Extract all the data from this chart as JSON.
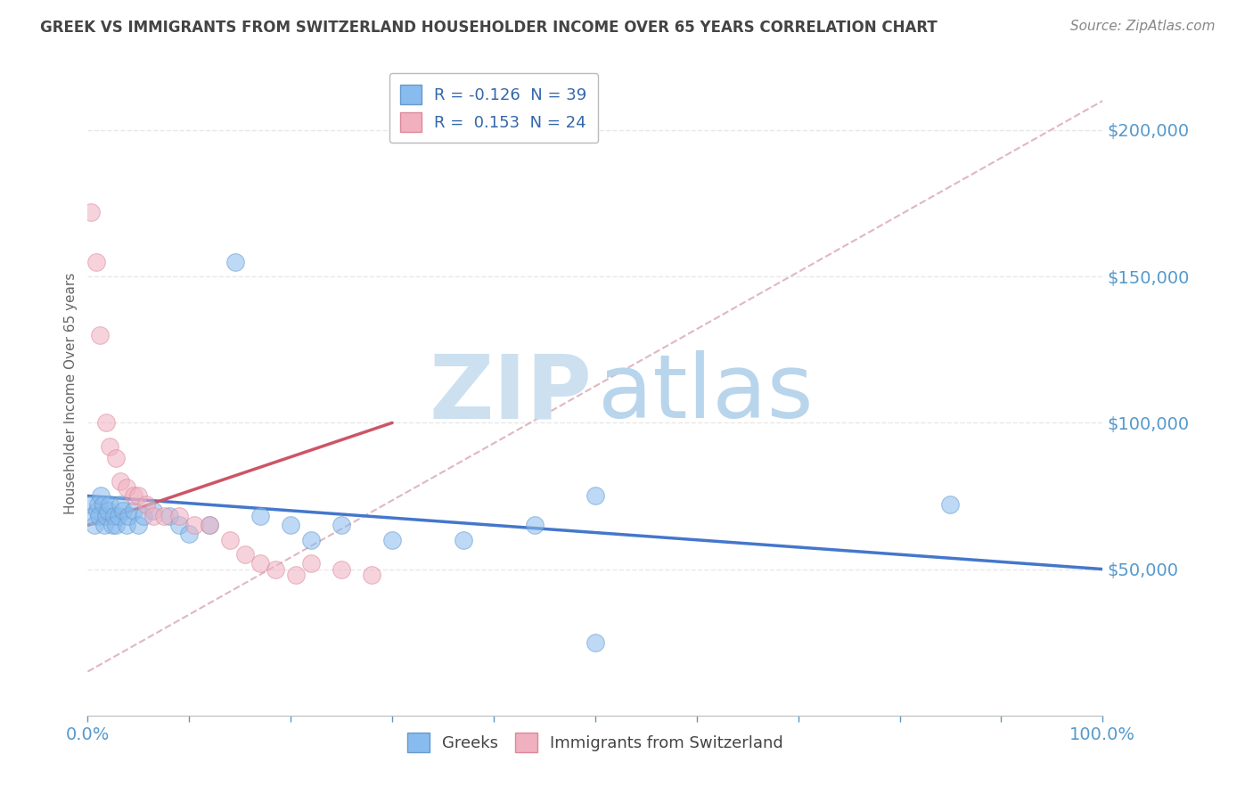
{
  "title": "GREEK VS IMMIGRANTS FROM SWITZERLAND HOUSEHOLDER INCOME OVER 65 YEARS CORRELATION CHART",
  "source": "Source: ZipAtlas.com",
  "ylabel": "Householder Income Over 65 years",
  "background_color": "#ffffff",
  "legend_entries": [
    {
      "label_r": "-0.126",
      "label_n": "39"
    },
    {
      "label_r": "0.153",
      "label_n": "24"
    }
  ],
  "legend_labels": [
    "Greeks",
    "Immigrants from Switzerland"
  ],
  "greeks_x": [
    0.3,
    0.5,
    0.7,
    0.9,
    1.0,
    1.1,
    1.3,
    1.5,
    1.6,
    1.8,
    2.0,
    2.2,
    2.4,
    2.6,
    2.8,
    3.0,
    3.2,
    3.5,
    3.8,
    4.0,
    4.5,
    5.0,
    5.5,
    6.5,
    8.0,
    9.0,
    10.0,
    12.0,
    14.5,
    17.0,
    20.0,
    22.0,
    25.0,
    30.0,
    37.0,
    44.0,
    50.0,
    85.0,
    50.0
  ],
  "greeks_y": [
    72000,
    68000,
    65000,
    70000,
    72000,
    68000,
    75000,
    72000,
    65000,
    68000,
    70000,
    72000,
    65000,
    68000,
    65000,
    68000,
    72000,
    70000,
    65000,
    68000,
    70000,
    65000,
    68000,
    70000,
    68000,
    65000,
    62000,
    65000,
    155000,
    68000,
    65000,
    60000,
    65000,
    60000,
    60000,
    65000,
    75000,
    72000,
    25000
  ],
  "swiss_x": [
    0.3,
    0.8,
    1.2,
    1.8,
    2.2,
    2.8,
    3.2,
    3.8,
    4.5,
    5.0,
    5.8,
    6.5,
    7.5,
    9.0,
    10.5,
    12.0,
    14.0,
    15.5,
    17.0,
    18.5,
    20.5,
    22.0,
    25.0,
    28.0
  ],
  "swiss_y": [
    172000,
    155000,
    130000,
    100000,
    92000,
    88000,
    80000,
    78000,
    75000,
    75000,
    72000,
    68000,
    68000,
    68000,
    65000,
    65000,
    60000,
    55000,
    52000,
    50000,
    48000,
    52000,
    50000,
    48000
  ],
  "ylim": [
    0,
    220000
  ],
  "xlim": [
    0,
    100
  ],
  "yticks": [
    50000,
    100000,
    150000,
    200000
  ],
  "ytick_labels": [
    "$50,000",
    "$100,000",
    "$150,000",
    "$200,000"
  ],
  "xtick_positions": [
    0,
    10,
    20,
    30,
    40,
    50,
    60,
    70,
    80,
    90,
    100
  ],
  "xtick_labels_show": [
    "0.0%",
    "",
    "",
    "",
    "",
    "",
    "",
    "",
    "",
    "",
    "100.0%"
  ],
  "blue_line_color": "#4477cc",
  "pink_line_color": "#cc5566",
  "ref_line_color": "#ddb0b8",
  "title_color": "#444444",
  "axis_color": "#5599cc",
  "grid_color": "#e8e8e8",
  "watermark_zip_color": "#cce0f0",
  "watermark_atlas_color": "#b8d5ec",
  "blue_scatter_color": "#88bbee",
  "blue_scatter_edge": "#6699cc",
  "pink_scatter_color": "#f0b0c0",
  "pink_scatter_edge": "#dd8899",
  "blue_line_x0": 0,
  "blue_line_y0": 75000,
  "blue_line_x1": 100,
  "blue_line_y1": 50000,
  "pink_line_x0": 0,
  "pink_line_y0": 65000,
  "pink_line_x1": 30,
  "pink_line_y1": 100000,
  "ref_line_x0": 0,
  "ref_line_y0": 15000,
  "ref_line_x1": 100,
  "ref_line_y1": 210000
}
